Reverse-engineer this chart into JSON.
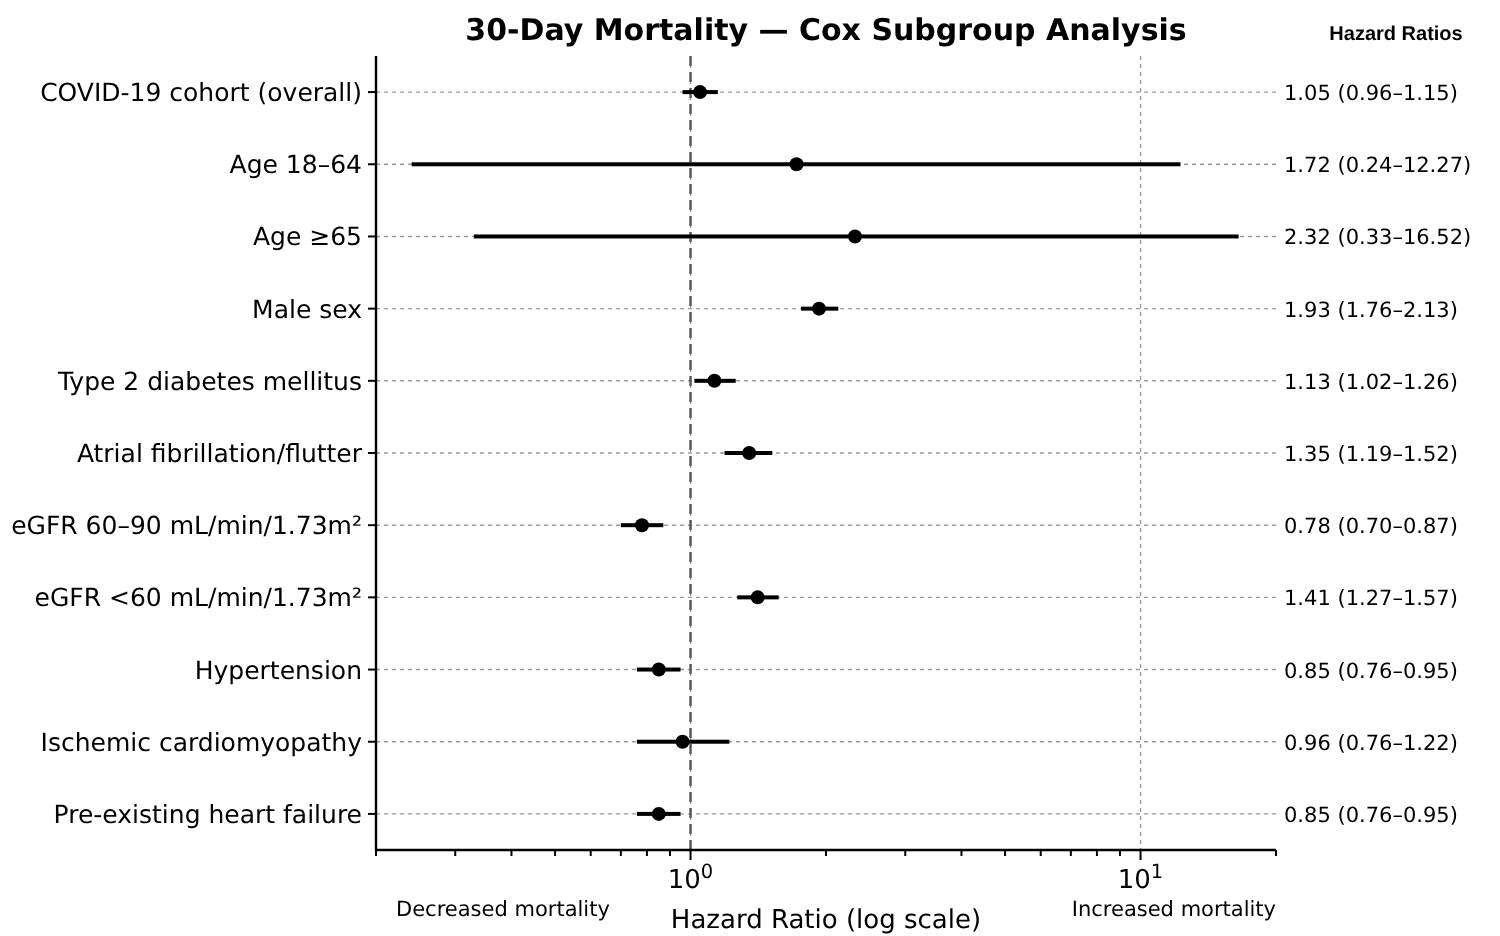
{
  "chart_data": {
    "type": "scatter",
    "orientation": "horizontal",
    "title": "30-Day Mortality — Cox Subgroup Analysis",
    "xlabel": "Hazard Ratio (log scale)",
    "categories": [
      "COVID-19 cohort (overall)",
      "Age 18–64",
      "Age ≥65",
      "Male sex",
      "Type 2 diabetes mellitus",
      "Atrial fibrillation/flutter",
      "eGFR 60–90 mL/min/1.73m²",
      "eGFR <60 mL/min/1.73m²",
      "Hypertension",
      "Ischemic cardiomyopathy",
      "Pre-existing heart failure"
    ],
    "values": [
      1.05,
      1.72,
      2.32,
      1.93,
      1.13,
      1.35,
      0.78,
      1.41,
      0.85,
      0.96,
      0.85
    ],
    "errors": [
      [
        0.96,
        1.15
      ],
      [
        0.24,
        12.27
      ],
      [
        0.33,
        16.52
      ],
      [
        1.76,
        2.13
      ],
      [
        1.02,
        1.26
      ],
      [
        1.19,
        1.52
      ],
      [
        0.7,
        0.87
      ],
      [
        1.27,
        1.57
      ],
      [
        0.76,
        0.95
      ],
      [
        0.76,
        1.22
      ],
      [
        0.76,
        0.95
      ]
    ],
    "annotations": [
      "1.05 (0.96–1.15)",
      "1.72 (0.24–12.27)",
      "2.32 (0.33–16.52)",
      "1.93 (1.76–2.13)",
      "1.13 (1.02–1.26)",
      "1.35 (1.19–1.52)",
      "0.78 (0.70–0.87)",
      "1.41 (1.27–1.57)",
      "0.85 (0.76–0.95)",
      "0.96 (0.76–1.22)",
      "0.85 (0.76–0.95)",
      "Decreased mortality",
      "Increased mortality",
      "Hazard Ratios"
    ],
    "color": "#000000",
    "marker": "circle",
    "log": "x",
    "grid": true,
    "xlim": [
      0.2,
      20
    ],
    "xticks": [
      {
        "value": 0.2,
        "label": null
      },
      {
        "value": 0.3,
        "label": null
      },
      {
        "value": 0.4,
        "label": null
      },
      {
        "value": 0.5,
        "label": null
      },
      {
        "value": 0.6,
        "label": null
      },
      {
        "value": 0.7,
        "label": null
      },
      {
        "value": 0.8,
        "label": null
      },
      {
        "value": 0.9,
        "label": null
      },
      {
        "value": 1,
        "label": "10$^{0}$"
      },
      {
        "value": 2,
        "label": null
      },
      {
        "value": 3,
        "label": null
      },
      {
        "value": 4,
        "label": null
      },
      {
        "value": 5,
        "label": null
      },
      {
        "value": 6,
        "label": null
      },
      {
        "value": 7,
        "label": null
      },
      {
        "value": 8,
        "label": null
      },
      {
        "value": 9,
        "label": null
      },
      {
        "value": 10,
        "label": "10$^{1}$"
      },
      {
        "value": 20,
        "label": null
      }
    ],
    "ref_lines": [
      {
        "axis": "x",
        "value": 1,
        "color": "#555555",
        "line_style": "dashed"
      }
    ]
  }
}
